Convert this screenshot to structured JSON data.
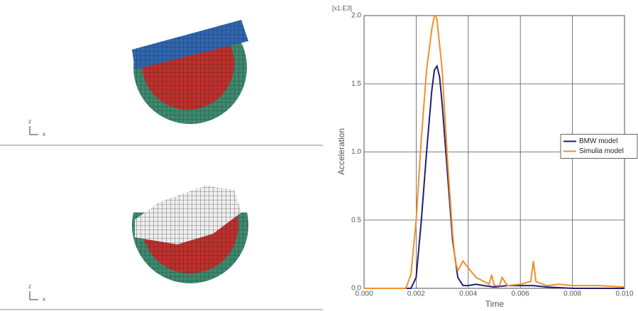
{
  "views": [
    {
      "axis_labels": [
        "z",
        "x"
      ]
    },
    {
      "axis_labels": [
        "z",
        "x"
      ]
    }
  ],
  "chart_data": {
    "type": "line",
    "scale_label": "[x1.E3]",
    "x_label": "Time",
    "y_label": "Acceleration",
    "xlim": [
      0,
      0.01
    ],
    "ylim": [
      0,
      2
    ],
    "xticks": [
      {
        "value": 0,
        "label": "0.000"
      },
      0.002,
      0.004,
      0.006,
      0.008,
      {
        "value": 0.01,
        "label": "0.010"
      }
    ],
    "yticks": [
      {
        "value": 0,
        "label": "0.0"
      },
      0.5,
      {
        "value": 1,
        "label": "1.0"
      },
      1.5,
      {
        "value": 2,
        "label": "2.0"
      }
    ],
    "grid": true,
    "legend": "right",
    "series": [
      {
        "name": "BMW model",
        "color": "#1f1f7a",
        "x": [
          0,
          0.0018,
          0.002,
          0.0022,
          0.0024,
          0.0026,
          0.0027,
          0.0028,
          0.0029,
          0.003,
          0.0032,
          0.0034,
          0.0036,
          0.0038,
          0.004,
          0.0043,
          0.0046,
          0.005,
          0.0055,
          0.006,
          0.0065,
          0.007,
          0.008,
          0.01
        ],
        "values": [
          0,
          0,
          0.08,
          0.5,
          1.0,
          1.45,
          1.6,
          1.63,
          1.55,
          1.35,
          0.85,
          0.35,
          0.08,
          0.02,
          0.02,
          0.03,
          0.02,
          0.01,
          0.02,
          0.02,
          0.02,
          0.01,
          0,
          0
        ]
      },
      {
        "name": "Simulia model",
        "color": "#f0902a",
        "x": [
          0,
          0.0016,
          0.0018,
          0.002,
          0.0022,
          0.0024,
          0.0026,
          0.0027,
          0.00275,
          0.0028,
          0.003,
          0.0032,
          0.0034,
          0.0035,
          0.0036,
          0.0038,
          0.004,
          0.0043,
          0.0046,
          0.0048,
          0.0049,
          0.005,
          0.0052,
          0.0053,
          0.0055,
          0.006,
          0.0064,
          0.0065,
          0.0066,
          0.007,
          0.0075,
          0.008,
          0.009,
          0.01
        ],
        "values": [
          0,
          0,
          0.1,
          0.5,
          1.1,
          1.6,
          1.9,
          2.0,
          2.0,
          1.97,
          1.6,
          0.95,
          0.4,
          0.2,
          0.13,
          0.2,
          0.15,
          0.08,
          0.05,
          0.03,
          0.1,
          0.02,
          0.02,
          0.08,
          0.02,
          0.03,
          0.05,
          0.2,
          0.05,
          0.02,
          0.03,
          0.02,
          0.02,
          0.01
        ]
      }
    ]
  }
}
